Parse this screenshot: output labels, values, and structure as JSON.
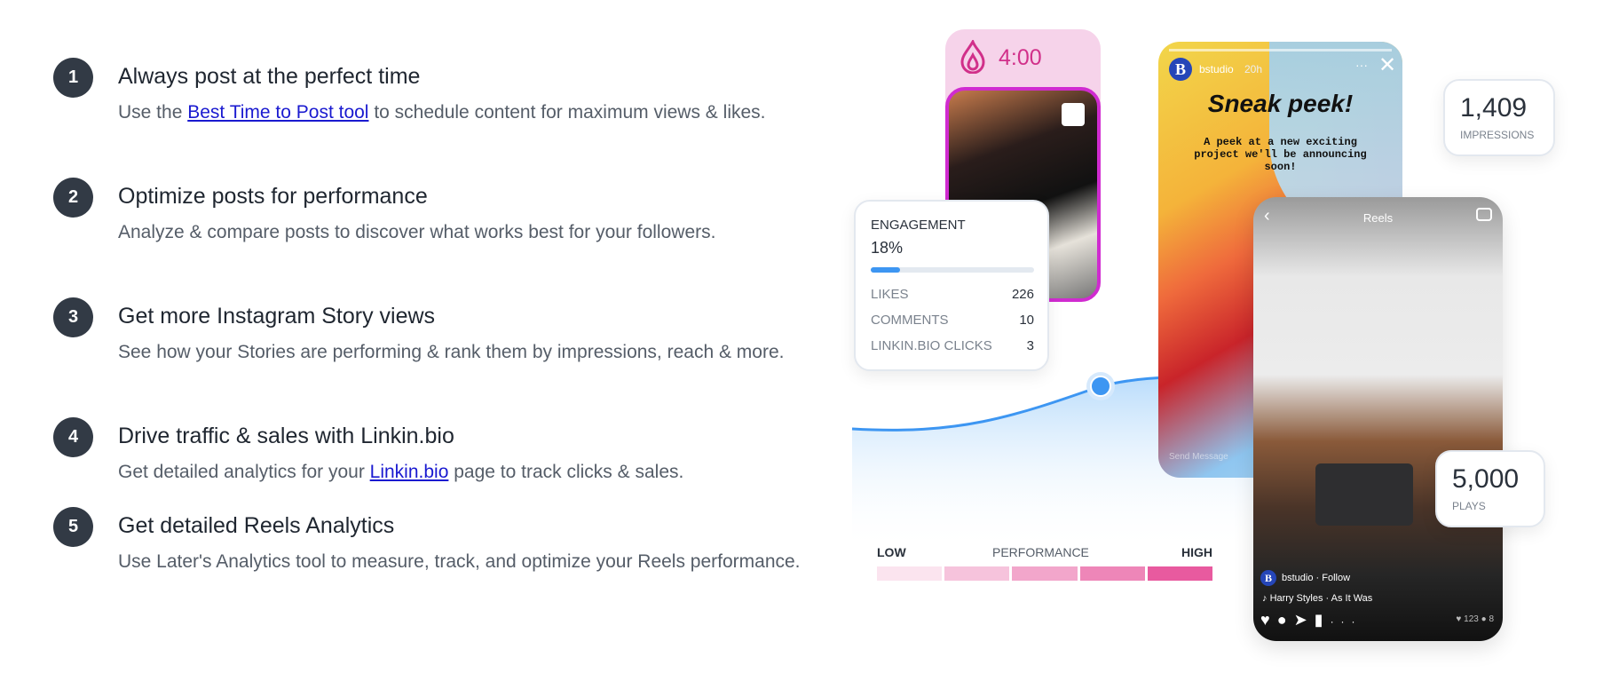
{
  "features": [
    {
      "number": "1",
      "title": "Always post at the perfect time",
      "desc_before": "Use the ",
      "link": "Best Time to Post tool",
      "desc_after": " to schedule content for maximum views & likes."
    },
    {
      "number": "2",
      "title": "Optimize posts for performance",
      "desc_before": "Analyze & compare posts to discover what works best for your followers.",
      "link": "",
      "desc_after": ""
    },
    {
      "number": "3",
      "title": "Get more Instagram Story views",
      "desc_before": "See how your Stories are performing & rank them by impressions, reach & more.",
      "link": "",
      "desc_after": ""
    },
    {
      "number": "4",
      "title": "Drive traffic & sales with Linkin.bio",
      "desc_before": "Get detailed analytics for your ",
      "link": "Linkin.bio",
      "desc_after": " page to track clicks & sales."
    },
    {
      "number": "5",
      "title": "Get detailed Reels Analytics",
      "desc_before": "Use Later's Analytics tool to measure, track, and optimize your Reels performance.",
      "link": "",
      "desc_after": ""
    }
  ],
  "timer": {
    "value": "4:00",
    "icon": "flame-icon"
  },
  "story": {
    "avatar": "B",
    "username": "bstudio",
    "age": "20h",
    "headline": "Sneak peek!",
    "body": "A peek at a new exciting project we'll be announcing soon!",
    "send_message": "Send Message"
  },
  "impressions": {
    "value": "1,409",
    "label": "IMPRESSIONS"
  },
  "engagement": {
    "title": "ENGAGEMENT",
    "percent": "18%",
    "fill": 0.18,
    "rows": [
      {
        "label": "LIKES",
        "value": "226"
      },
      {
        "label": "COMMENTS",
        "value": "10"
      },
      {
        "label": "LINKIN.BIO CLICKS",
        "value": "3"
      }
    ]
  },
  "reels": {
    "title": "Reels",
    "avatar": "B",
    "account": "bstudio · Follow",
    "audio": "Harry Styles · As It Was",
    "likes": "123",
    "comments": "8"
  },
  "plays": {
    "value": "5,000",
    "label": "PLAYS"
  },
  "performance": {
    "low": "LOW",
    "label": "PERFORMANCE",
    "high": "HIGH",
    "colors": [
      "#fbe4ef",
      "#f6c3dc",
      "#f2a6cb",
      "#ee86b8",
      "#e85a9f"
    ]
  },
  "colors": {
    "number_bg": "#323a45",
    "link": "#1a1ad0",
    "accent_blue": "#3d96f2",
    "timer_pink": "#d1308a"
  }
}
